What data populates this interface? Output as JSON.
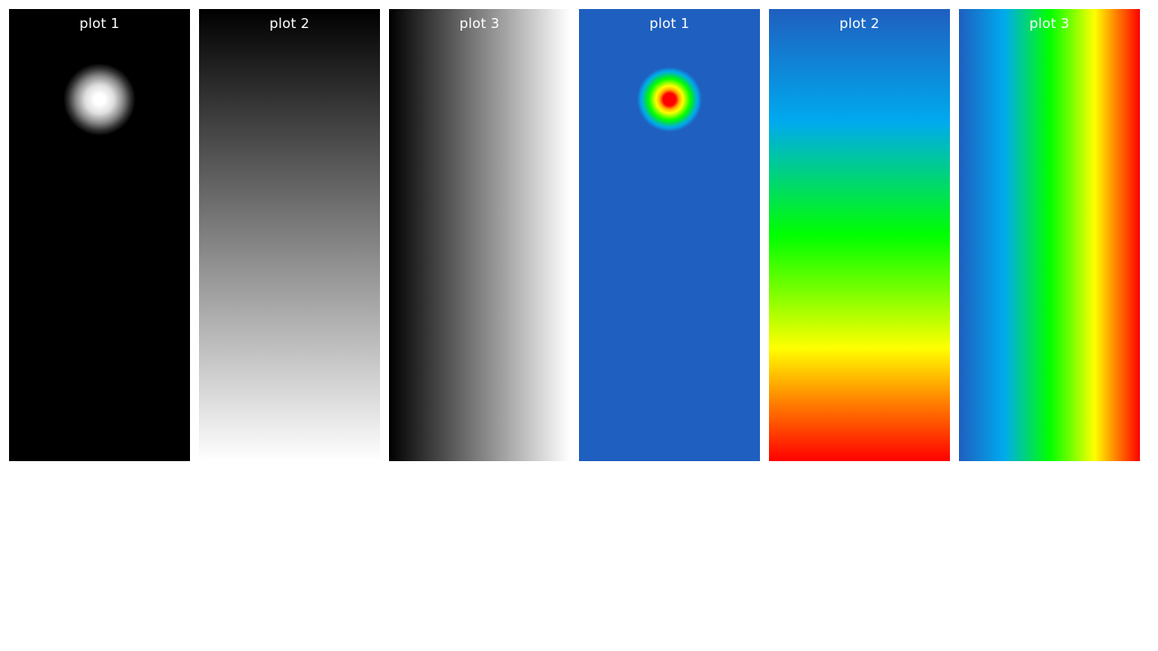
{
  "chart_data": [
    {
      "type": "heatmap",
      "title": "plot 1",
      "colormap": "gray",
      "pattern": "radial-spot",
      "description_values": {
        "peak": "white",
        "background": "black"
      },
      "grid": false
    },
    {
      "type": "heatmap",
      "title": "plot 2",
      "colormap": "gray",
      "pattern": "vertical-gradient",
      "description_values": {
        "top": "black",
        "bottom": "white"
      },
      "grid": false
    },
    {
      "type": "heatmap",
      "title": "plot 3",
      "colormap": "gray",
      "pattern": "horizontal-gradient",
      "description_values": {
        "left": "black",
        "right": "white"
      },
      "grid": false
    },
    {
      "type": "heatmap",
      "title": "plot 1",
      "colormap": "jet",
      "pattern": "radial-spot",
      "description_values": {
        "peak": "red",
        "background": "blue"
      },
      "grid": false
    },
    {
      "type": "heatmap",
      "title": "plot 2",
      "colormap": "jet",
      "pattern": "vertical-gradient",
      "description_values": {
        "top": "blue",
        "bottom": "red"
      },
      "grid": false
    },
    {
      "type": "heatmap",
      "title": "plot 3",
      "colormap": "jet",
      "pattern": "horizontal-gradient",
      "description_values": {
        "left": "blue",
        "right": "red"
      },
      "grid": false
    }
  ],
  "colors": {
    "title_text": "#ffffff",
    "page_background": "#ffffff",
    "jet_low": "#1f5fbf",
    "jet_high": "#ff0000",
    "gray_low": "#000000",
    "gray_high": "#ffffff"
  }
}
